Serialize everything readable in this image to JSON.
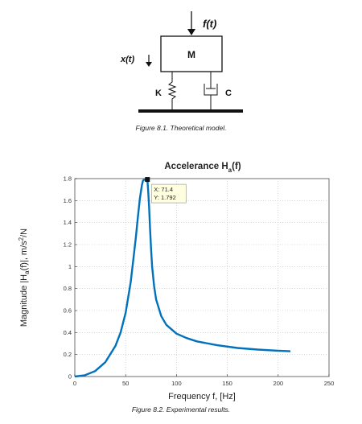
{
  "figure1": {
    "mass_label": "M",
    "force_label": "f(t)",
    "displacement_label": "x(t)",
    "spring_label": "K",
    "damper_label": "C",
    "caption": "Figure 8.1. Theoretical model."
  },
  "figure2": {
    "caption": "Figure 8.2. Experimental results."
  },
  "chart_data": {
    "type": "line",
    "title": "Accelerance H_a(f)",
    "title_main": "Accelerance H",
    "title_sub": "a",
    "title_end": "(f)",
    "xlabel": "Frequency f, [Hz]",
    "ylabel_parts": [
      "Magnitude |H",
      "a",
      "(f)|, m/s",
      "2",
      "/N"
    ],
    "xlim": [
      0,
      250
    ],
    "ylim": [
      0,
      1.8
    ],
    "xticks": [
      "0",
      "50",
      "100",
      "150",
      "200",
      "250"
    ],
    "yticks": [
      "0",
      "0.2",
      "0.4",
      "0.6",
      "0.8",
      "1",
      "1.2",
      "1.4",
      "1.6",
      "1.8"
    ],
    "grid": true,
    "line_color": "#0072bd",
    "series": [
      {
        "x": [
          0,
          10,
          20,
          30,
          40,
          45,
          50,
          55,
          58,
          60,
          62,
          64,
          66,
          67,
          68,
          69,
          70,
          70.7,
          71.4,
          72.1,
          73,
          74,
          75,
          76,
          78,
          80,
          85,
          90,
          100,
          110,
          120,
          140,
          160,
          180,
          200,
          212
        ],
        "y": [
          0,
          0.012,
          0.05,
          0.13,
          0.28,
          0.4,
          0.58,
          0.86,
          1.1,
          1.26,
          1.45,
          1.62,
          1.74,
          1.78,
          1.79,
          1.79,
          1.79,
          1.79,
          1.792,
          1.7,
          1.55,
          1.35,
          1.16,
          1.0,
          0.82,
          0.7,
          0.55,
          0.47,
          0.39,
          0.35,
          0.32,
          0.285,
          0.26,
          0.245,
          0.235,
          0.23
        ]
      }
    ],
    "datatip": {
      "x": 71.4,
      "y": 1.792,
      "x_label": "X: 71.4",
      "y_label": "Y: 1.792"
    }
  }
}
